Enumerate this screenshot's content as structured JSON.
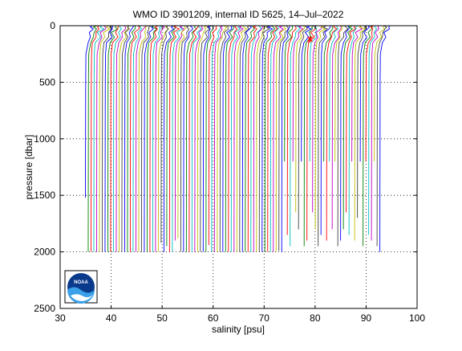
{
  "chart_data": {
    "type": "line",
    "title": "WMO ID 3901209, internal ID 5625, 14–Jul–2022",
    "xlabel": "salinity [psu]",
    "ylabel": "pressure [dbar]",
    "xlim": [
      30,
      100
    ],
    "ylim": [
      0,
      2500
    ],
    "y_reversed": true,
    "xticks": [
      30,
      40,
      50,
      60,
      70,
      80,
      90,
      100
    ],
    "yticks": [
      0,
      500,
      1000,
      1500,
      2000,
      2500
    ],
    "grid": "dotted",
    "series": {
      "note_values": "profile i is plotted with a cumulative salinity offset; each profile: surface ~[0,30] dbar, thermocline to ~150 dbar, then near-constant to its max depth",
      "offset_start": 35.0,
      "offset_step": 0.55,
      "count": 106,
      "max_pressures": [
        1520,
        2000,
        2000,
        2000,
        2000,
        2000,
        2000,
        2000,
        2000,
        2000,
        2000,
        2000,
        2000,
        2000,
        2000,
        2000,
        2000,
        2000,
        2000,
        2000,
        2000,
        2000,
        2000,
        2000,
        2000,
        2000,
        2000,
        1920,
        2000,
        1950,
        2000,
        2000,
        1900,
        1880,
        2000,
        2000,
        2000,
        2000,
        2000,
        2000,
        2000,
        2000,
        2000,
        2000,
        1940,
        2000,
        2000,
        2000,
        2000,
        2000,
        2000,
        2000,
        2000,
        2000,
        2000,
        2000,
        2000,
        2000,
        2000,
        2000,
        2000,
        2000,
        2000,
        2000,
        2000,
        2000,
        2000,
        2000,
        2000,
        1990,
        2000,
        1200,
        1850,
        1950,
        1200,
        1650,
        1800,
        1200,
        1950,
        1900,
        1200,
        1650,
        1800,
        1950,
        1850,
        1200,
        1900,
        1200,
        1800,
        1200,
        1950,
        1900,
        1800,
        1650,
        1850,
        1200,
        1900,
        1700,
        1200,
        1950,
        1200,
        1850,
        1900,
        1200,
        1950,
        2000
      ]
    },
    "line_colors": [
      "#0000ff",
      "#008000",
      "#ff0000",
      "#00bfbf",
      "#bf00bf",
      "#bfbf00",
      "#404040"
    ],
    "logo": "noaa-logo"
  }
}
